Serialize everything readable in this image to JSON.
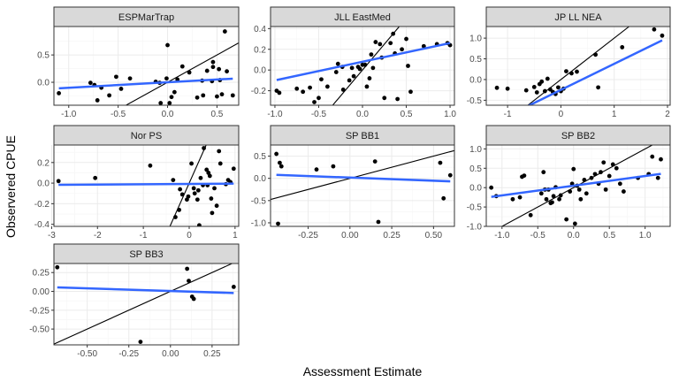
{
  "chart_data": {
    "type": "scatter",
    "xlabel": "Assessment Estimate",
    "ylabel": "Observered CPUE",
    "colors": {
      "points": "#000000",
      "fit_line": "#3366ff",
      "reference_line": "#000000",
      "strip": "#d9d9d9"
    },
    "panels": [
      {
        "title": "ESPMarTrap",
        "xlim": [
          -1.15,
          0.72
        ],
        "ylim": [
          -0.42,
          1.02
        ],
        "xticks": [
          -1.0,
          -0.5,
          0.0,
          0.5
        ],
        "xtick_labels": [
          "-1.0",
          "-0.5",
          "0.0",
          "0.5"
        ],
        "yticks": [
          0.0,
          0.5
        ],
        "ytick_labels": [
          "0.0",
          "0.5"
        ],
        "fit": {
          "intercept": 0.0,
          "slope": 0.1
        },
        "points": [
          [
            -1.1,
            -0.2
          ],
          [
            -0.78,
            -0.01
          ],
          [
            -0.74,
            -0.05
          ],
          [
            -0.71,
            -0.33
          ],
          [
            -0.67,
            -0.1
          ],
          [
            -0.59,
            -0.24
          ],
          [
            -0.52,
            0.1
          ],
          [
            -0.47,
            -0.12
          ],
          [
            -0.38,
            0.07
          ],
          [
            -0.12,
            0.01
          ],
          [
            -0.08,
            -0.01
          ],
          [
            -0.07,
            -0.38
          ],
          [
            0.02,
            -0.38
          ],
          [
            0.04,
            -0.27
          ],
          [
            0.07,
            -0.18
          ],
          [
            -0.01,
            0.07
          ],
          [
            0.0,
            0.68
          ],
          [
            0.1,
            0.05
          ],
          [
            0.15,
            0.29
          ],
          [
            0.22,
            0.18
          ],
          [
            0.3,
            -0.28
          ],
          [
            0.35,
            0.03
          ],
          [
            0.36,
            -0.24
          ],
          [
            0.4,
            0.21
          ],
          [
            0.45,
            0.02
          ],
          [
            0.46,
            0.37
          ],
          [
            0.46,
            0.28
          ],
          [
            0.5,
            -0.26
          ],
          [
            0.52,
            0.24
          ],
          [
            0.53,
            0.04
          ],
          [
            0.55,
            -0.22
          ],
          [
            0.58,
            0.93
          ],
          [
            0.6,
            0.2
          ],
          [
            0.66,
            -0.24
          ]
        ]
      },
      {
        "title": "JLL EastMed",
        "xlim": [
          -1.05,
          1.05
        ],
        "ylim": [
          -0.34,
          0.42
        ],
        "xticks": [
          -1.0,
          -0.5,
          0.0,
          0.5,
          1.0
        ],
        "xtick_labels": [
          "-1.0",
          "-0.5",
          "0.0",
          "0.5",
          "1.0"
        ],
        "yticks": [
          -0.2,
          0.0,
          0.2,
          0.4
        ],
        "ytick_labels": [
          "-0.2",
          "0.0",
          "0.2",
          "0.4"
        ],
        "fit": {
          "intercept": 0.08,
          "slope": 0.18
        },
        "points": [
          [
            -0.98,
            -0.2
          ],
          [
            -0.95,
            -0.22
          ],
          [
            -0.75,
            -0.18
          ],
          [
            -0.68,
            -0.21
          ],
          [
            -0.6,
            -0.17
          ],
          [
            -0.55,
            -0.31
          ],
          [
            -0.5,
            -0.27
          ],
          [
            -0.47,
            -0.09
          ],
          [
            -0.4,
            -0.16
          ],
          [
            -0.3,
            -0.02
          ],
          [
            -0.28,
            0.06
          ],
          [
            -0.23,
            0.03
          ],
          [
            -0.22,
            -0.19
          ],
          [
            -0.15,
            -0.1
          ],
          [
            -0.12,
            0.02
          ],
          [
            -0.1,
            -0.06
          ],
          [
            -0.05,
            0.03
          ],
          [
            -0.03,
            0.01
          ],
          [
            0.0,
            0.05
          ],
          [
            0.03,
            0.05
          ],
          [
            0.05,
            -0.16
          ],
          [
            0.08,
            -0.08
          ],
          [
            0.1,
            0.15
          ],
          [
            0.12,
            0.02
          ],
          [
            0.15,
            0.27
          ],
          [
            0.2,
            0.25
          ],
          [
            0.22,
            0.12
          ],
          [
            0.25,
            -0.27
          ],
          [
            0.32,
            0.26
          ],
          [
            0.35,
            0.35
          ],
          [
            0.37,
            0.16
          ],
          [
            0.4,
            -0.28
          ],
          [
            0.45,
            0.2
          ],
          [
            0.5,
            0.3
          ],
          [
            0.52,
            0.04
          ],
          [
            0.55,
            -0.21
          ],
          [
            0.7,
            0.23
          ],
          [
            0.85,
            0.25
          ],
          [
            0.97,
            0.26
          ],
          [
            1.0,
            0.24
          ]
        ]
      },
      {
        "title": "JP LL NEA",
        "xlim": [
          -1.4,
          2.05
        ],
        "ylim": [
          -0.62,
          1.28
        ],
        "xticks": [
          -1,
          0,
          1,
          2
        ],
        "xtick_labels": [
          "-1",
          "0",
          "1",
          "2"
        ],
        "yticks": [
          -0.5,
          0.0,
          0.5,
          1.0
        ],
        "ytick_labels": [
          "-0.5",
          "0.0",
          "0.5",
          "1.0"
        ],
        "fit": {
          "intercept": -0.25,
          "slope": 0.63
        },
        "points": [
          [
            -1.2,
            -0.2
          ],
          [
            -1.0,
            -0.22
          ],
          [
            -0.65,
            -0.26
          ],
          [
            -0.5,
            -0.18
          ],
          [
            -0.45,
            -0.31
          ],
          [
            -0.4,
            -0.11
          ],
          [
            -0.36,
            -0.05
          ],
          [
            -0.3,
            -0.28
          ],
          [
            -0.25,
            0.02
          ],
          [
            -0.2,
            -0.24
          ],
          [
            -0.15,
            -0.3
          ],
          [
            -0.1,
            -0.35
          ],
          [
            -0.05,
            -0.19
          ],
          [
            0.0,
            -0.28
          ],
          [
            0.05,
            -0.22
          ],
          [
            0.1,
            0.2
          ],
          [
            0.2,
            0.15
          ],
          [
            0.3,
            0.19
          ],
          [
            0.65,
            0.6
          ],
          [
            0.7,
            -0.19
          ],
          [
            1.15,
            0.78
          ],
          [
            1.75,
            1.21
          ],
          [
            1.9,
            1.06
          ]
        ]
      },
      {
        "title": "Nor PS",
        "xlim": [
          -2.95,
          1.08
        ],
        "ylim": [
          -0.42,
          0.37
        ],
        "xticks": [
          -3,
          -2,
          -1,
          0,
          1
        ],
        "xtick_labels": [
          "-3",
          "-2",
          "-1",
          "0",
          "1"
        ],
        "yticks": [
          -0.4,
          -0.2,
          0.0,
          0.2
        ],
        "ytick_labels": [
          "-0.4",
          "-0.2",
          "0.0",
          "0.2"
        ],
        "fit": {
          "intercept": -0.008,
          "slope": 0.003
        },
        "points": [
          [
            -2.85,
            0.02
          ],
          [
            -2.05,
            0.05
          ],
          [
            -0.85,
            0.17
          ],
          [
            -0.35,
            0.03
          ],
          [
            -0.3,
            -0.33
          ],
          [
            -0.22,
            -0.26
          ],
          [
            -0.2,
            -0.06
          ],
          [
            -0.15,
            -0.11
          ],
          [
            -0.05,
            -0.16
          ],
          [
            -0.02,
            -0.13
          ],
          [
            0.05,
            0.19
          ],
          [
            0.1,
            -0.05
          ],
          [
            0.12,
            -0.1
          ],
          [
            0.18,
            -0.16
          ],
          [
            0.2,
            -0.07
          ],
          [
            0.22,
            -0.41
          ],
          [
            0.25,
            0.05
          ],
          [
            0.3,
            -0.02
          ],
          [
            0.32,
            0.34
          ],
          [
            0.38,
            0.13
          ],
          [
            0.4,
            -0.02
          ],
          [
            0.42,
            0.1
          ],
          [
            0.45,
            0.07
          ],
          [
            0.48,
            -0.15
          ],
          [
            0.5,
            -0.29
          ],
          [
            0.55,
            -0.05
          ],
          [
            0.6,
            -0.22
          ],
          [
            0.65,
            0.31
          ],
          [
            0.68,
            0.19
          ],
          [
            0.8,
            -0.01
          ],
          [
            0.85,
            0.03
          ],
          [
            0.9,
            0.01
          ],
          [
            0.97,
            0.14
          ]
        ]
      },
      {
        "title": "SP BB1",
        "xlim": [
          -0.475,
          0.625
        ],
        "ylim": [
          -1.08,
          0.75
        ],
        "xticks": [
          -0.25,
          0.0,
          0.25,
          0.5
        ],
        "xtick_labels": [
          "-0.25",
          "0.00",
          "0.25",
          "0.50"
        ],
        "yticks": [
          -1.0,
          -0.5,
          0.0,
          0.5
        ],
        "ytick_labels": [
          "-1.0",
          "-0.5",
          "0.0",
          "0.5"
        ],
        "fit": {
          "intercept": 0.017,
          "slope": -0.14
        },
        "points": [
          [
            -0.44,
            0.55
          ],
          [
            -0.43,
            -1.02
          ],
          [
            -0.42,
            0.35
          ],
          [
            -0.41,
            0.27
          ],
          [
            -0.2,
            0.2
          ],
          [
            -0.1,
            0.27
          ],
          [
            0.15,
            0.38
          ],
          [
            0.17,
            -0.98
          ],
          [
            0.54,
            0.35
          ],
          [
            0.56,
            -0.45
          ],
          [
            0.6,
            0.07
          ]
        ]
      },
      {
        "title": "SP BB2",
        "xlim": [
          -1.22,
          1.35
        ],
        "ylim": [
          -1.0,
          1.1
        ],
        "xticks": [
          -1.0,
          -0.5,
          0.0,
          0.5,
          1.0
        ],
        "xtick_labels": [
          "-1.0",
          "-0.5",
          "0.0",
          "0.5",
          "1.0"
        ],
        "yticks": [
          -1.0,
          -0.5,
          0.0,
          0.5,
          1.0
        ],
        "ytick_labels": [
          "-1.0",
          "-0.5",
          "0.0",
          "0.5",
          "1.0"
        ],
        "fit": {
          "intercept": 0.05,
          "slope": 0.25
        },
        "points": [
          [
            -1.15,
            0.0
          ],
          [
            -1.08,
            -0.22
          ],
          [
            -0.85,
            -0.3
          ],
          [
            -0.75,
            -0.25
          ],
          [
            -0.72,
            0.28
          ],
          [
            -0.69,
            0.31
          ],
          [
            -0.6,
            -0.71
          ],
          [
            -0.45,
            -0.15
          ],
          [
            -0.42,
            0.4
          ],
          [
            -0.4,
            -0.05
          ],
          [
            -0.38,
            -0.3
          ],
          [
            -0.35,
            -0.05
          ],
          [
            -0.32,
            -0.4
          ],
          [
            -0.3,
            -0.38
          ],
          [
            -0.28,
            -0.22
          ],
          [
            -0.25,
            0.01
          ],
          [
            -0.2,
            -0.3
          ],
          [
            -0.18,
            -0.2
          ],
          [
            -0.1,
            -0.82
          ],
          [
            -0.05,
            -0.1
          ],
          [
            -0.02,
            0.1
          ],
          [
            0.0,
            0.48
          ],
          [
            0.02,
            -0.93
          ],
          [
            0.05,
            0.05
          ],
          [
            0.08,
            -0.05
          ],
          [
            0.1,
            -0.3
          ],
          [
            0.15,
            0.2
          ],
          [
            0.18,
            -0.15
          ],
          [
            0.25,
            0.25
          ],
          [
            0.3,
            0.35
          ],
          [
            0.35,
            0.1
          ],
          [
            0.38,
            0.4
          ],
          [
            0.42,
            0.65
          ],
          [
            0.45,
            -0.05
          ],
          [
            0.5,
            0.3
          ],
          [
            0.55,
            0.6
          ],
          [
            0.6,
            0.5
          ],
          [
            0.65,
            0.1
          ],
          [
            0.7,
            -0.1
          ],
          [
            0.9,
            0.25
          ],
          [
            1.05,
            0.35
          ],
          [
            1.1,
            0.8
          ],
          [
            1.18,
            0.25
          ],
          [
            1.22,
            0.73
          ]
        ]
      },
      {
        "title": "SP BB3",
        "xlim": [
          -0.7,
          0.41
        ],
        "ylim": [
          -0.71,
          0.37
        ],
        "xticks": [
          -0.5,
          -0.25,
          0.0,
          0.25
        ],
        "xtick_labels": [
          "-0.50",
          "-0.25",
          "0.00",
          "0.25"
        ],
        "yticks": [
          -0.5,
          -0.25,
          0.0,
          0.25
        ],
        "ytick_labels": [
          "-0.50",
          "-0.25",
          "0.00",
          "0.25"
        ],
        "fit": {
          "intercept": 0.005,
          "slope": -0.07
        },
        "points": [
          [
            -0.68,
            0.32
          ],
          [
            -0.18,
            -0.67
          ],
          [
            0.1,
            0.3
          ],
          [
            0.11,
            0.14
          ],
          [
            0.13,
            -0.07
          ],
          [
            0.14,
            -0.1
          ],
          [
            0.38,
            0.06
          ]
        ]
      }
    ]
  }
}
